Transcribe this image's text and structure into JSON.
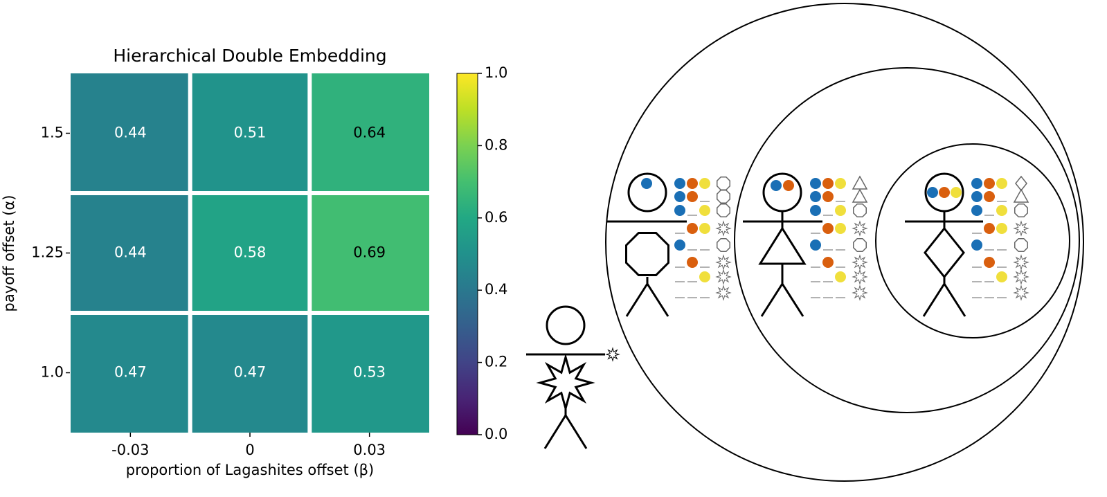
{
  "chart_data": {
    "type": "heatmap",
    "title": "Hierarchical Double Embedding",
    "x_label": "proportion of Lagashites offset (β)",
    "y_label": "payoff offset (α)",
    "x_categories": [
      "-0.03",
      "0",
      "0.03"
    ],
    "y_categories": [
      "1.5",
      "1.25",
      "1.0"
    ],
    "values": [
      [
        0.44,
        0.51,
        0.64
      ],
      [
        0.44,
        0.58,
        0.69
      ],
      [
        0.47,
        0.47,
        0.53
      ]
    ],
    "colormap": "viridis",
    "clim": [
      0,
      1
    ],
    "cticks": [
      {
        "value": 0,
        "label": "0.0"
      },
      0.2,
      0.4,
      0.6,
      0.8,
      {
        "value": 1,
        "label": "1.0"
      }
    ]
  }
}
